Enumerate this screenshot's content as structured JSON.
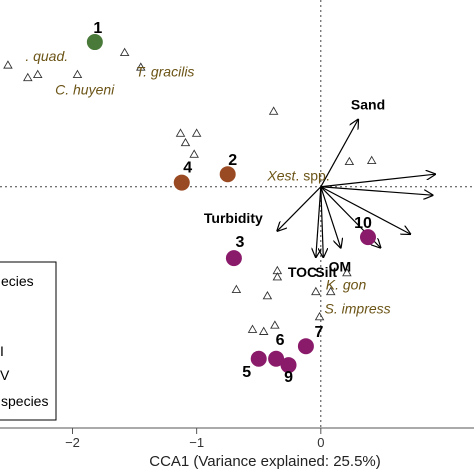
{
  "chart_data": {
    "type": "scatter",
    "xlabel": "CCA1 (Variance explained: 25.5%)",
    "xticks": [
      -2,
      -1,
      0
    ],
    "xlim": [
      -2.6,
      1.25
    ],
    "ylim": [
      -2.3,
      1.8
    ],
    "sites": [
      {
        "label": "1",
        "x": -1.82,
        "y": 1.38,
        "color": "#4a7a3a"
      },
      {
        "label": "2",
        "x": -0.75,
        "y": 0.12,
        "color": "#9a4a22"
      },
      {
        "label": "4",
        "x": -1.12,
        "y": 0.04,
        "color": "#9a4a22"
      },
      {
        "label": "3",
        "x": -0.7,
        "y": -0.68,
        "color": "#8a1a6a"
      },
      {
        "label": "10",
        "x": 0.38,
        "y": -0.48,
        "color": "#8a1a6a"
      },
      {
        "label": "7",
        "x": -0.12,
        "y": -1.52,
        "color": "#8a1a6a"
      },
      {
        "label": "6",
        "x": -0.36,
        "y": -1.64,
        "color": "#8a1a6a"
      },
      {
        "label": "5",
        "x": -0.5,
        "y": -1.64,
        "color": "#8a1a6a"
      },
      {
        "label": "9",
        "x": -0.26,
        "y": -1.7,
        "color": "#8a1a6a"
      }
    ],
    "species_points": [
      {
        "x": -2.52,
        "y": 1.16
      },
      {
        "x": -1.58,
        "y": 1.28
      },
      {
        "x": -1.45,
        "y": 1.14
      },
      {
        "x": -2.28,
        "y": 1.07
      },
      {
        "x": -2.36,
        "y": 1.04
      },
      {
        "x": -1.96,
        "y": 1.07
      },
      {
        "x": -0.38,
        "y": 0.72
      },
      {
        "x": -1.0,
        "y": 0.51
      },
      {
        "x": -1.02,
        "y": 0.31
      },
      {
        "x": -1.13,
        "y": 0.51
      },
      {
        "x": -1.09,
        "y": 0.42
      },
      {
        "x": 0.23,
        "y": 0.24
      },
      {
        "x": 0.41,
        "y": 0.25
      },
      {
        "x": -0.68,
        "y": -0.98
      },
      {
        "x": -0.55,
        "y": -1.36
      },
      {
        "x": -0.46,
        "y": -1.38
      },
      {
        "x": -0.43,
        "y": -1.04
      },
      {
        "x": -0.35,
        "y": -0.8
      },
      {
        "x": -0.35,
        "y": -0.86
      },
      {
        "x": -0.37,
        "y": -1.32
      },
      {
        "x": -0.04,
        "y": -1.0
      },
      {
        "x": -0.01,
        "y": -1.24
      },
      {
        "x": 0.08,
        "y": -1.0
      },
      {
        "x": 0.21,
        "y": -0.82
      }
    ],
    "species_labels": [
      {
        "parts": [
          {
            "t": ". quad.",
            "i": true
          }
        ],
        "x": -2.38,
        "y": 1.2
      },
      {
        "parts": [
          {
            "t": "T. gracilis",
            "i": true
          }
        ],
        "x": -1.49,
        "y": 1.05
      },
      {
        "parts": [
          {
            "t": "C. huyeni",
            "i": true
          }
        ],
        "x": -2.14,
        "y": 0.88
      },
      {
        "parts": [
          {
            "t": "Xest",
            "i": true
          },
          {
            "t": ". spp.",
            "i": false
          }
        ],
        "x": -0.43,
        "y": 0.06
      },
      {
        "parts": [
          {
            "t": "K. gon",
            "i": true
          }
        ],
        "x": 0.04,
        "y": -0.98
      },
      {
        "parts": [
          {
            "t": "S. impress",
            "i": true
          }
        ],
        "x": 0.03,
        "y": -1.21
      }
    ],
    "env_vectors": [
      {
        "name": "Sand",
        "x": 0.3,
        "y": 0.64
      },
      {
        "name": "Turbidity",
        "x": -0.35,
        "y": -0.42
      },
      {
        "name": "TOC",
        "x": -0.04,
        "y": -0.67
      },
      {
        "name": "Silt",
        "x": 0.02,
        "y": -0.67
      },
      {
        "name": "OM",
        "x": 0.16,
        "y": -0.58
      },
      {
        "name": "",
        "x": 0.92,
        "y": 0.12
      },
      {
        "name": "",
        "x": 0.9,
        "y": -0.08
      },
      {
        "name": "",
        "x": 0.72,
        "y": -0.45
      },
      {
        "name": "",
        "x": 0.48,
        "y": -0.58
      }
    ],
    "legend": {
      "entries": [
        {
          "text": "ecies",
          "kind": "title"
        },
        {
          "text": "",
          "kind": "blank"
        },
        {
          "text": "",
          "kind": "blank"
        },
        {
          "text": "I",
          "kind": "item"
        },
        {
          "text": "V",
          "kind": "item"
        },
        {
          "text": "species",
          "kind": "item"
        }
      ]
    },
    "colors": {
      "group1": "#4a7a3a",
      "group2": "#9a4a22",
      "group3": "#8a1a6a",
      "species_text": "#6b5416"
    }
  }
}
